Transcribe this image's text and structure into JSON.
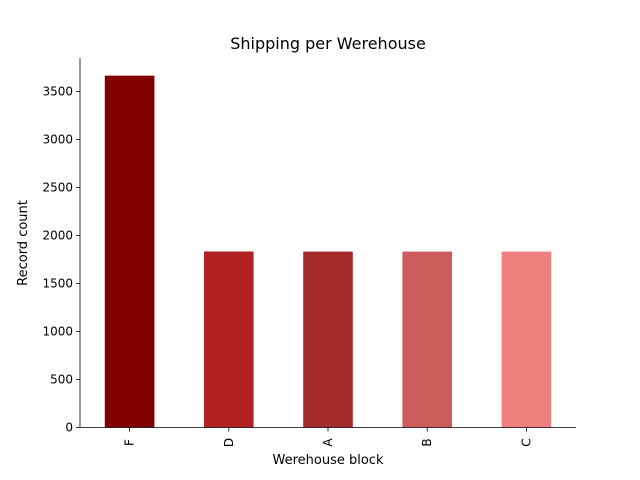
{
  "chart_data": {
    "type": "bar",
    "title": "Shipping per Werehouse",
    "xlabel": "Werehouse block",
    "ylabel": "Record count",
    "categories": [
      "F",
      "D",
      "A",
      "B",
      "C"
    ],
    "values": [
      3666,
      1834,
      1833,
      1833,
      1833
    ],
    "colors": [
      "#800000",
      "#b22222",
      "#a52a2a",
      "#cd5c5c",
      "#f08080"
    ],
    "ylim": [
      0,
      3850
    ],
    "yticks": [
      0,
      500,
      1000,
      1500,
      2000,
      2500,
      3000,
      3500
    ],
    "grid": false,
    "legend": "none"
  }
}
